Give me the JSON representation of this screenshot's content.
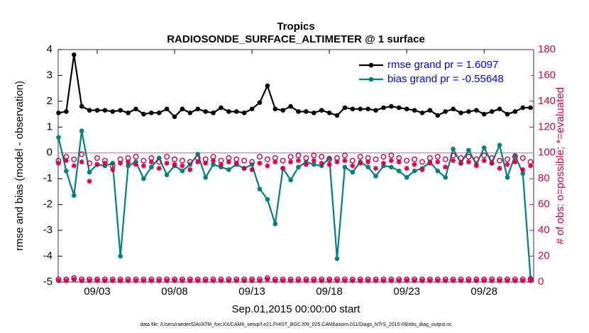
{
  "chart_data": {
    "type": "line",
    "title": [
      "Tropics",
      "RADIOSONDE_SURFACE_ALTIMETER @ 1 surface"
    ],
    "xlabel": "Sep.01,2015 00:00:00 start",
    "ylabel": "rmse and bias (model - observation)",
    "y2label": "# of obs: o=possible; *=evaluated",
    "footnote": "data file: /Users/raeder/DAI/ATM_forcXX/CAM6_setup/f.e21.FHIST_BGC.f09_025.CAM6assim.011/Diags_NTrS_2015-09/obs_diag_output.nc",
    "xlim": [
      -0.52,
      30.2
    ],
    "xticks": [
      {
        "value": 2,
        "label": "09/03"
      },
      {
        "value": 7,
        "label": "09/08"
      },
      {
        "value": 12,
        "label": "09/13"
      },
      {
        "value": 17,
        "label": "09/18"
      },
      {
        "value": 22,
        "label": "09/23"
      },
      {
        "value": 27,
        "label": "09/28"
      }
    ],
    "ylim": [
      -5,
      4
    ],
    "yticks": [
      -5,
      -4,
      -3,
      -2,
      -1,
      0,
      1,
      2,
      3,
      4
    ],
    "y2lim": [
      0,
      180
    ],
    "y2ticks": [
      0,
      20,
      40,
      60,
      80,
      100,
      120,
      140,
      160,
      180
    ],
    "legend": "upper right",
    "x": [
      -0.5,
      0,
      0.5,
      1,
      1.5,
      2,
      2.5,
      3,
      3.5,
      4,
      4.5,
      5,
      5.5,
      6,
      6.5,
      7,
      7.5,
      8,
      8.5,
      9,
      9.5,
      10,
      10.5,
      11,
      11.5,
      12,
      12.5,
      13,
      13.5,
      14,
      14.5,
      15,
      15.5,
      16,
      16.5,
      17,
      17.5,
      18,
      18.5,
      19,
      19.5,
      20,
      20.5,
      21,
      21.5,
      22,
      22.5,
      23,
      23.5,
      24,
      24.5,
      25,
      25.5,
      26,
      26.5,
      27,
      27.5,
      28,
      28.5,
      29,
      29.5,
      30
    ],
    "series": [
      {
        "name": "rmse grand pr = 1.6097",
        "color": "#000000",
        "marker": "filled",
        "values": [
          1.55,
          1.6,
          3.8,
          1.8,
          1.65,
          1.65,
          1.65,
          1.6,
          1.65,
          1.55,
          1.7,
          1.5,
          1.55,
          1.55,
          1.7,
          1.4,
          1.7,
          1.55,
          1.7,
          1.6,
          1.55,
          1.75,
          1.6,
          1.6,
          1.55,
          1.7,
          1.95,
          2.6,
          1.7,
          1.65,
          1.8,
          1.6,
          1.6,
          1.55,
          1.65,
          1.55,
          1.45,
          1.75,
          1.7,
          1.7,
          1.7,
          1.65,
          1.75,
          1.8,
          1.75,
          1.7,
          1.65,
          1.55,
          1.65,
          1.45,
          1.6,
          1.7,
          1.55,
          1.6,
          1.65,
          1.5,
          1.6,
          1.7,
          1.5,
          1.6,
          1.75,
          1.75
        ]
      },
      {
        "name": "bias grand pr = -0.55648",
        "color": "#008080",
        "marker": "filled",
        "values": [
          0.6,
          -0.7,
          -1.65,
          0.85,
          -0.75,
          -0.45,
          -0.5,
          -0.4,
          -4.0,
          -0.5,
          -0.35,
          -1.0,
          -0.55,
          -0.2,
          -0.85,
          -0.5,
          -0.7,
          -0.45,
          -0.05,
          -0.95,
          -0.45,
          -0.55,
          -0.65,
          -0.45,
          -0.6,
          -0.45,
          -1.4,
          -1.8,
          -2.75,
          -0.6,
          -1.05,
          -0.55,
          -0.35,
          -0.45,
          -0.5,
          -0.2,
          -4.1,
          -0.55,
          -0.75,
          -0.35,
          -0.55,
          -0.9,
          -0.5,
          -0.55,
          -0.7,
          -0.95,
          -0.7,
          -0.6,
          -0.35,
          -0.7,
          -0.95,
          0.15,
          -0.4,
          0.1,
          -0.45,
          0.2,
          -0.4,
          0.3,
          -0.95,
          -0.1,
          -0.8,
          -4.85
        ]
      },
      {
        "color": "#d6004d",
        "axis": "y2",
        "marker": "o",
        "values": [
          94,
          97,
          95,
          99,
          92,
          96,
          94,
          90,
          95,
          96,
          97,
          94,
          96,
          93,
          97,
          95,
          94,
          93,
          96,
          95,
          97,
          94,
          96,
          95,
          94,
          93,
          97,
          95,
          96,
          94,
          97,
          98,
          96,
          98,
          97,
          95,
          96,
          98,
          94,
          97,
          96,
          95,
          97,
          98,
          96,
          94,
          95,
          93,
          96,
          97,
          95,
          98,
          96,
          97,
          95,
          98,
          96,
          94,
          95,
          97,
          96,
          93
        ]
      },
      {
        "color": "#d6004d",
        "axis": "y2",
        "marker": "*",
        "values": [
          92,
          94,
          90,
          93,
          78,
          91,
          92,
          87,
          92,
          93,
          91,
          90,
          93,
          88,
          92,
          91,
          90,
          87,
          93,
          92,
          94,
          91,
          93,
          92,
          88,
          87,
          92,
          90,
          93,
          88,
          93,
          94,
          91,
          94,
          92,
          91,
          93,
          94,
          90,
          92,
          93,
          88,
          92,
          94,
          93,
          88,
          91,
          87,
          92,
          93,
          89,
          94,
          92,
          93,
          90,
          94,
          92,
          88,
          91,
          93,
          87,
          90
        ]
      },
      {
        "color": "#d6004d",
        "axis": "y2",
        "marker": "o",
        "values": [
          2,
          2,
          3,
          2,
          2,
          2,
          2,
          2,
          2,
          2,
          2,
          2,
          2,
          2,
          2,
          2,
          2,
          2,
          2,
          2,
          2,
          2,
          2,
          2,
          2,
          2,
          2,
          3,
          2,
          2,
          2,
          2,
          2,
          2,
          2,
          2,
          2,
          2,
          2,
          2,
          2,
          2,
          2,
          2,
          2,
          2,
          2,
          2,
          2,
          2,
          2,
          2,
          2,
          2,
          2,
          2,
          2,
          2,
          2,
          2,
          2,
          2
        ]
      },
      {
        "color": "#d6004d",
        "axis": "y2",
        "marker": "*",
        "values": [
          1,
          1,
          2,
          1,
          1,
          1,
          1,
          1,
          1,
          1,
          1,
          1,
          1,
          1,
          1,
          1,
          1,
          1,
          1,
          1,
          1,
          1,
          1,
          1,
          1,
          1,
          1,
          2,
          1,
          1,
          1,
          1,
          1,
          1,
          1,
          1,
          1,
          1,
          1,
          1,
          1,
          1,
          1,
          1,
          1,
          1,
          1,
          1,
          1,
          1,
          1,
          1,
          1,
          1,
          1,
          1,
          1,
          1,
          1,
          1,
          1,
          1
        ]
      }
    ]
  }
}
